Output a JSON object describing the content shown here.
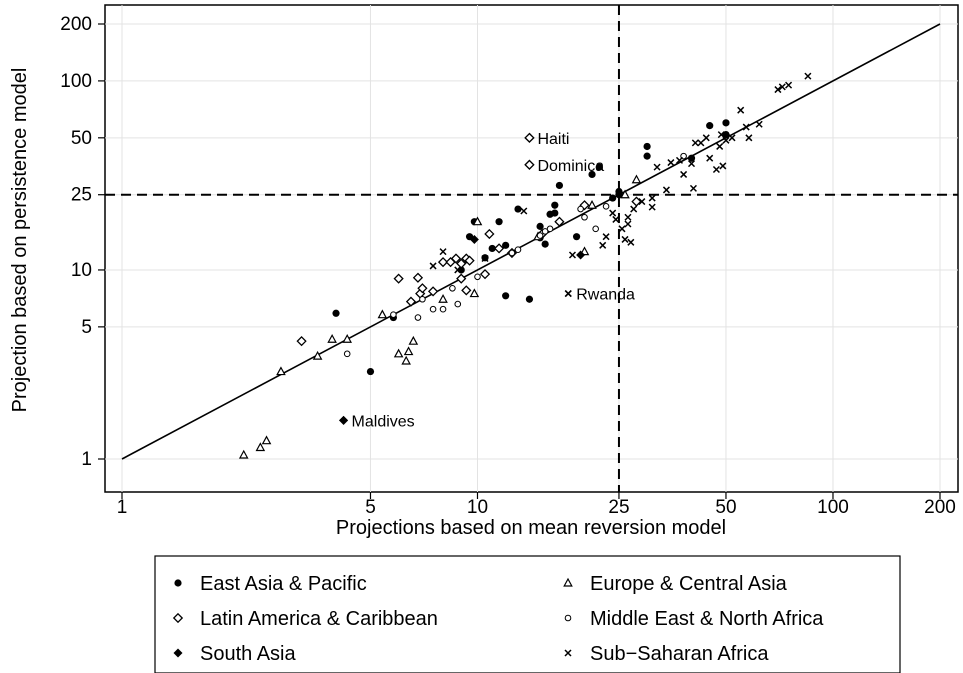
{
  "chart_data": {
    "type": "scatter",
    "xlabel": "Projections based on mean reversion model",
    "ylabel": "Projection based on persistence model",
    "xscale": "log",
    "yscale": "log",
    "xlim": [
      1,
      200
    ],
    "ylim": [
      1,
      200
    ],
    "xticks": [
      1,
      5,
      10,
      25,
      50,
      100,
      200
    ],
    "xtick_labels": [
      "1",
      "5",
      "10",
      "25",
      "50",
      "100",
      "200"
    ],
    "yticks": [
      1,
      5,
      10,
      25,
      50,
      100,
      200
    ],
    "ytick_labels": [
      "1",
      "5",
      "10",
      "25",
      "50",
      "100",
      "200"
    ],
    "grid": true,
    "reference_lines": {
      "x": 25,
      "y": 25,
      "style": "dashed"
    },
    "fit_line": {
      "from": [
        1,
        1
      ],
      "to": [
        200,
        200
      ]
    },
    "legend": {
      "placement": "bottom",
      "columns": 2,
      "entries": [
        {
          "label": "East Asia & Pacific",
          "marker": "filled-circle"
        },
        {
          "label": "Europe & Central Asia",
          "marker": "triangle"
        },
        {
          "label": "Latin America & Caribbean",
          "marker": "hollow-diamond"
        },
        {
          "label": "Middle East & North Africa",
          "marker": "hollow-circle"
        },
        {
          "label": "South Asia",
          "marker": "filled-diamond"
        },
        {
          "label": "Sub−Saharan Africa",
          "marker": "cross"
        }
      ]
    },
    "annotations": [
      {
        "text": "Haiti",
        "x": 14,
        "y": 50,
        "series": 2
      },
      {
        "text": "Dominica",
        "x": 14,
        "y": 36,
        "series": 2
      },
      {
        "text": "Rwanda",
        "x": 18,
        "y": 7.5,
        "series": 5
      },
      {
        "text": "Maldives",
        "x": 4.2,
        "y": 1.6,
        "series": 4
      }
    ],
    "series": [
      {
        "name": "East Asia & Pacific",
        "marker": "filled-circle",
        "points": [
          [
            4,
            5.9
          ],
          [
            5,
            2.9
          ],
          [
            5.8,
            5.6
          ],
          [
            9,
            10
          ],
          [
            9.5,
            15
          ],
          [
            9.8,
            18
          ],
          [
            10.5,
            11.6
          ],
          [
            11,
            13
          ],
          [
            11.5,
            18
          ],
          [
            12,
            13.5
          ],
          [
            12,
            7.3
          ],
          [
            13,
            21
          ],
          [
            14,
            7
          ],
          [
            15,
            17
          ],
          [
            15,
            14.8
          ],
          [
            15.5,
            13.7
          ],
          [
            16,
            19.7
          ],
          [
            16.5,
            22
          ],
          [
            16.5,
            20
          ],
          [
            17,
            28
          ],
          [
            19,
            15
          ],
          [
            21,
            32
          ],
          [
            22,
            35
          ],
          [
            24,
            24
          ],
          [
            25,
            26
          ],
          [
            25,
            25
          ],
          [
            30,
            45
          ],
          [
            30,
            40
          ],
          [
            40,
            39
          ],
          [
            45,
            58
          ],
          [
            50,
            60
          ],
          [
            50,
            52
          ]
        ]
      },
      {
        "name": "Europe & Central Asia",
        "marker": "triangle",
        "points": [
          [
            2.2,
            1.05
          ],
          [
            2.45,
            1.15
          ],
          [
            2.55,
            1.25
          ],
          [
            2.8,
            2.9
          ],
          [
            3.55,
            3.5
          ],
          [
            3.9,
            4.3
          ],
          [
            4.3,
            4.3
          ],
          [
            5.4,
            5.8
          ],
          [
            6,
            3.6
          ],
          [
            6.3,
            3.3
          ],
          [
            6.4,
            3.7
          ],
          [
            6.6,
            4.2
          ],
          [
            8,
            7
          ],
          [
            9.8,
            7.5
          ],
          [
            10,
            18
          ],
          [
            14.8,
            15
          ],
          [
            20,
            12.5
          ],
          [
            21,
            22
          ],
          [
            26,
            25
          ],
          [
            28,
            30
          ]
        ]
      },
      {
        "name": "Latin America & Caribbean",
        "marker": "hollow-diamond",
        "points": [
          [
            3.2,
            4.2
          ],
          [
            6,
            9
          ],
          [
            6.5,
            6.8
          ],
          [
            6.8,
            9.1
          ],
          [
            6.9,
            7.5
          ],
          [
            7,
            8
          ],
          [
            7.5,
            7.7
          ],
          [
            8,
            11
          ],
          [
            8.4,
            11
          ],
          [
            8.7,
            11.5
          ],
          [
            9,
            10.8
          ],
          [
            9,
            9
          ],
          [
            9.3,
            11.5
          ],
          [
            9.3,
            7.8
          ],
          [
            9.5,
            11.2
          ],
          [
            10.5,
            9.5
          ],
          [
            10.8,
            15.5
          ],
          [
            11.5,
            13
          ],
          [
            12.5,
            12.3
          ],
          [
            14,
            50
          ],
          [
            14,
            36
          ],
          [
            15.2,
            15.5
          ],
          [
            17,
            18
          ],
          [
            20,
            22
          ],
          [
            28,
            23
          ]
        ]
      },
      {
        "name": "Middle East & North Africa",
        "marker": "hollow-circle",
        "points": [
          [
            4.3,
            3.6
          ],
          [
            5.8,
            5.8
          ],
          [
            6.8,
            5.6
          ],
          [
            7,
            7
          ],
          [
            7.5,
            6.2
          ],
          [
            8,
            6.2
          ],
          [
            8.5,
            8
          ],
          [
            8.8,
            6.6
          ],
          [
            10,
            9.2
          ],
          [
            12.5,
            12.3
          ],
          [
            13,
            12.8
          ],
          [
            15,
            15.2
          ],
          [
            15.5,
            16
          ],
          [
            16,
            16.5
          ],
          [
            19.5,
            21
          ],
          [
            20,
            19
          ],
          [
            21.5,
            16.5
          ],
          [
            23,
            21.7
          ],
          [
            38,
            40
          ]
        ]
      },
      {
        "name": "South Asia",
        "marker": "filled-diamond",
        "points": [
          [
            4.2,
            1.6
          ],
          [
            9.8,
            14.5
          ],
          [
            19.5,
            12
          ]
        ]
      },
      {
        "name": "Sub−Saharan Africa",
        "marker": "cross",
        "points": [
          [
            7.5,
            10.5
          ],
          [
            8,
            12.5
          ],
          [
            8.8,
            10
          ],
          [
            10.5,
            11.5
          ],
          [
            13.5,
            20.5
          ],
          [
            18,
            7.5
          ],
          [
            18.5,
            12
          ],
          [
            22.5,
            13.5
          ],
          [
            23,
            15
          ],
          [
            24,
            20
          ],
          [
            24.5,
            18.5
          ],
          [
            25.5,
            16.5
          ],
          [
            26,
            14.5
          ],
          [
            26.5,
            17.5
          ],
          [
            26.5,
            19
          ],
          [
            27,
            14
          ],
          [
            27.5,
            21
          ],
          [
            29,
            23
          ],
          [
            31,
            21.5
          ],
          [
            31,
            24
          ],
          [
            32,
            35
          ],
          [
            34,
            26.5
          ],
          [
            35,
            37
          ],
          [
            37,
            38
          ],
          [
            38,
            32
          ],
          [
            40,
            36.5
          ],
          [
            40.5,
            27
          ],
          [
            41,
            47
          ],
          [
            42.5,
            47
          ],
          [
            44,
            50
          ],
          [
            45,
            39
          ],
          [
            47,
            34
          ],
          [
            48,
            45
          ],
          [
            48.5,
            52
          ],
          [
            49,
            35.5
          ],
          [
            50,
            48.5
          ],
          [
            52,
            50
          ],
          [
            55,
            70
          ],
          [
            57,
            57
          ],
          [
            58,
            50
          ],
          [
            62,
            59
          ],
          [
            70,
            90
          ],
          [
            72,
            93
          ],
          [
            75,
            95
          ],
          [
            85,
            106
          ]
        ]
      }
    ]
  }
}
